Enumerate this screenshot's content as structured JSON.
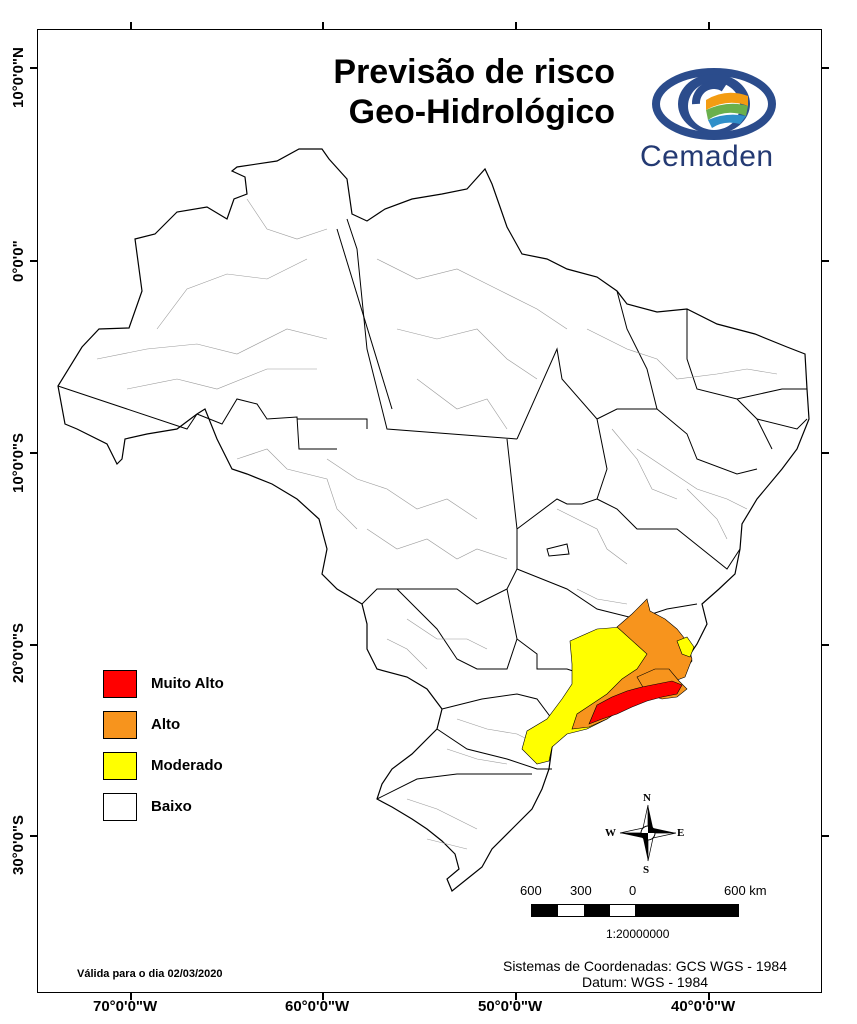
{
  "title": {
    "line1": "Previsão de risco",
    "line2": "Geo-Hidrológico"
  },
  "logo": {
    "name": "Cemaden",
    "colors": {
      "ring": "#2b4c8c",
      "green": "#6ab04c",
      "orange": "#f39c12"
    }
  },
  "latitude_labels": [
    {
      "text": "10°0'0\"N"
    },
    {
      "text": "0°0'0\""
    },
    {
      "text": "10°0'0\"S"
    },
    {
      "text": "20°0'0\"S"
    },
    {
      "text": "30°0'0\"S"
    }
  ],
  "longitude_labels": [
    {
      "text": "70°0'0\"W"
    },
    {
      "text": "60°0'0\"W"
    },
    {
      "text": "50°0'0\"W"
    },
    {
      "text": "40°0'0\"W"
    }
  ],
  "legend": [
    {
      "label": "Muito Alto",
      "color": "#ff0000"
    },
    {
      "label": "Alto",
      "color": "#f7941d"
    },
    {
      "label": "Moderado",
      "color": "#ffff00"
    },
    {
      "label": "Baixo",
      "color": "#ffffff"
    }
  ],
  "compass": {
    "n": "N",
    "s": "S",
    "e": "E",
    "w": "W"
  },
  "scale": {
    "labels": [
      "600",
      "300",
      "0",
      "600 km"
    ],
    "ratio": "1:20000000"
  },
  "validity": "Válida para o dia 02/03/2020",
  "coordinate_system": {
    "line1": "Sistemas de Coordenadas: GCS WGS - 1984",
    "line2": "Datum: WGS - 1984"
  }
}
